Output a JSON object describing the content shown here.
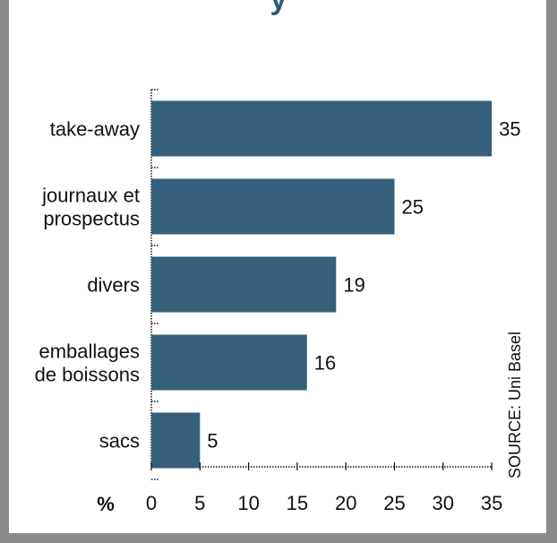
{
  "title_fragment": "y",
  "chart_data": {
    "type": "bar",
    "orientation": "horizontal",
    "categories": [
      [
        "take-away"
      ],
      [
        "journaux et",
        "prospectus"
      ],
      [
        "divers"
      ],
      [
        "emballages",
        "de boissons"
      ],
      [
        "sacs"
      ]
    ],
    "values": [
      35,
      25,
      19,
      16,
      5
    ],
    "xlim": [
      0,
      35
    ],
    "xticks": [
      0,
      5,
      10,
      15,
      20,
      25,
      30,
      35
    ],
    "unit_label": "%",
    "source": "SOURCE: Uni Basel",
    "bar_color": "#36607a",
    "grid": false
  }
}
